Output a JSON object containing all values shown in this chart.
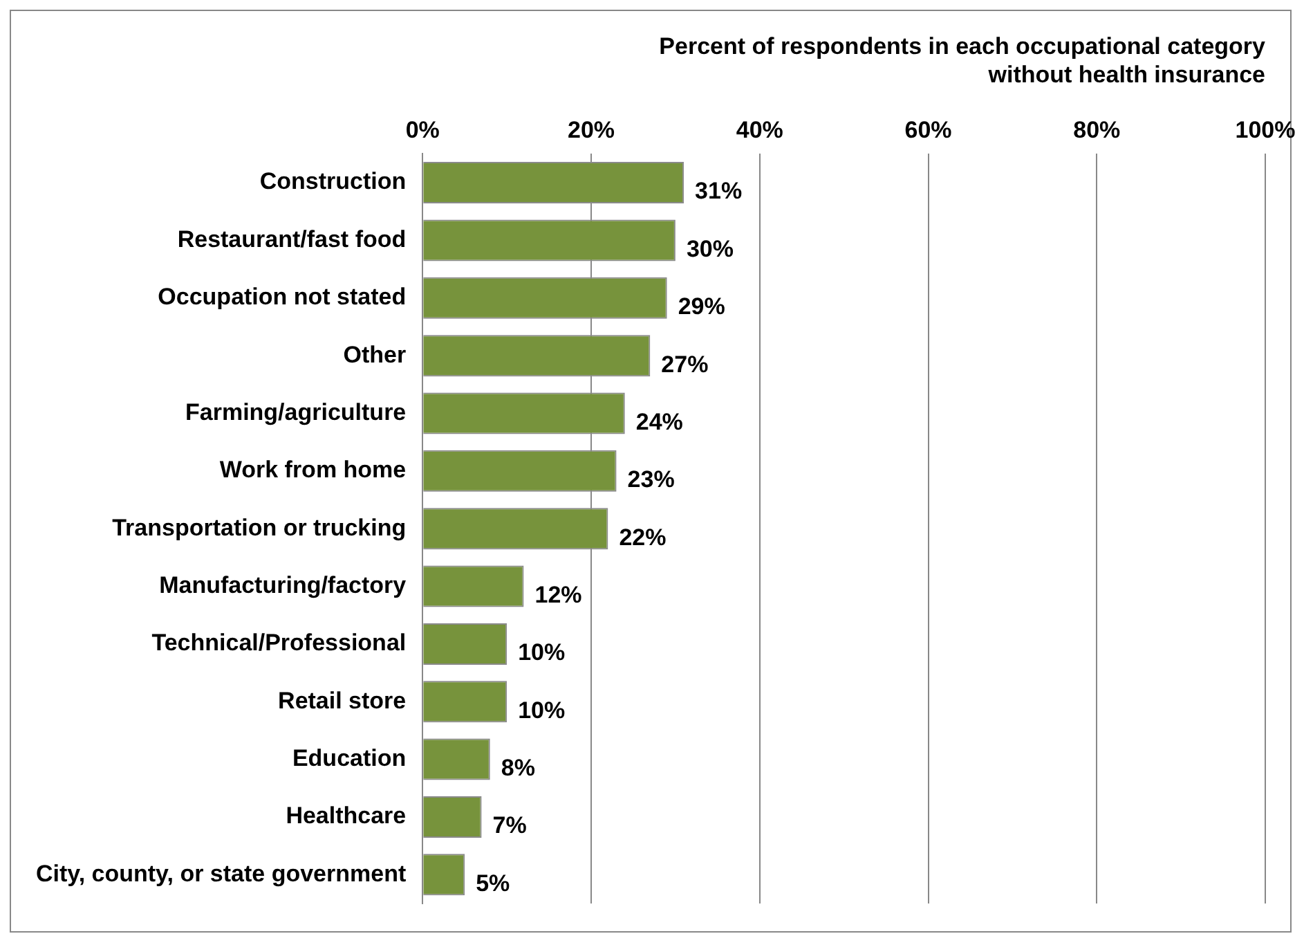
{
  "chart_data": {
    "type": "bar",
    "orientation": "horizontal",
    "title": "Percent of respondents in each occupational category without health insurance",
    "categories": [
      "Construction",
      "Restaurant/fast food",
      "Occupation not stated",
      "Other",
      "Farming/agriculture",
      "Work from home",
      "Transportation or trucking",
      "Manufacturing/factory",
      "Technical/Professional",
      "Retail store",
      "Education",
      "Healthcare",
      "City, county, or state government"
    ],
    "values": [
      31,
      30,
      29,
      27,
      24,
      23,
      22,
      12,
      10,
      10,
      8,
      7,
      5
    ],
    "value_labels": [
      "31%",
      "30%",
      "29%",
      "27%",
      "24%",
      "23%",
      "22%",
      "12%",
      "10%",
      "10%",
      "8%",
      "7%",
      "5%"
    ],
    "color": "#77933c",
    "xlim": [
      0,
      100
    ],
    "xticks": [
      {
        "value": 0,
        "label": "0%"
      },
      {
        "value": 20,
        "label": "20%"
      },
      {
        "value": 40,
        "label": "40%"
      },
      {
        "value": 60,
        "label": "60%"
      },
      {
        "value": 80,
        "label": "80%"
      },
      {
        "value": 100,
        "label": "100%"
      }
    ],
    "grid": "x",
    "legend": false
  }
}
